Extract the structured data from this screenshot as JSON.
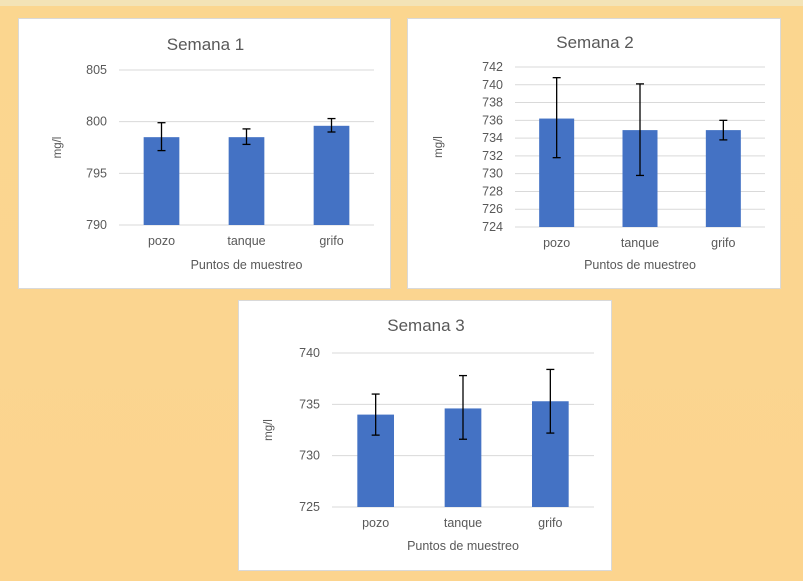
{
  "chart_data": [
    {
      "type": "bar",
      "title": "Semana 1",
      "xlabel": "Puntos de muestreo",
      "ylabel": "mg/l",
      "categories": [
        "pozo",
        "tanque",
        "grifo"
      ],
      "values": [
        798.5,
        798.5,
        799.6
      ],
      "error_low": [
        797.2,
        797.8,
        799.0
      ],
      "error_high": [
        799.9,
        799.3,
        800.3
      ],
      "ylim": [
        790,
        805
      ],
      "yticks": [
        790,
        795,
        800,
        805
      ],
      "color": "#4472c4",
      "grid": true
    },
    {
      "type": "bar",
      "title": "Semana 2",
      "xlabel": "Puntos de muestreo",
      "ylabel": "mg/l",
      "categories": [
        "pozo",
        "tanque",
        "grifo"
      ],
      "values": [
        736.2,
        734.9,
        734.9
      ],
      "error_low": [
        731.8,
        729.8,
        733.8
      ],
      "error_high": [
        740.8,
        740.1,
        736.0
      ],
      "ylim": [
        724,
        742
      ],
      "yticks": [
        724,
        726,
        728,
        730,
        732,
        734,
        736,
        738,
        740,
        742
      ],
      "color": "#4472c4",
      "grid": true
    },
    {
      "type": "bar",
      "title": "Semana 3",
      "xlabel": "Puntos de muestreo",
      "ylabel": "mg/l",
      "categories": [
        "pozo",
        "tanque",
        "grifo"
      ],
      "values": [
        734.0,
        734.6,
        735.3
      ],
      "error_low": [
        732.0,
        731.6,
        732.2
      ],
      "error_high": [
        736.0,
        737.8,
        738.4
      ],
      "ylim": [
        725,
        740
      ],
      "yticks": [
        725,
        730,
        735,
        740
      ],
      "color": "#4472c4",
      "grid": true
    }
  ]
}
